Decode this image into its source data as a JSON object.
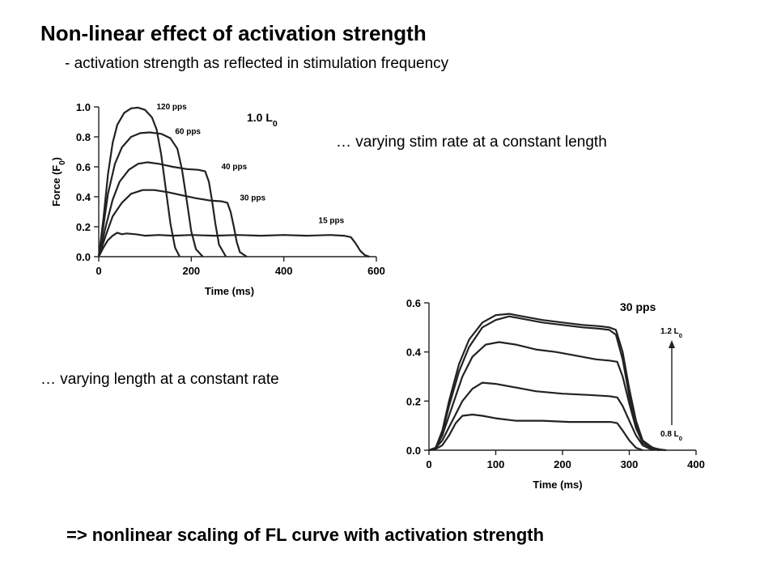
{
  "header": {
    "title": "Non-linear effect of activation strength",
    "subtitle": "- activation strength as reflected in stimulation frequency"
  },
  "notes": {
    "rate_note": "… varying stim rate at a constant length",
    "length_note": "… varying length at a constant rate"
  },
  "conclusion": "=> nonlinear scaling of FL curve with activation strength",
  "chart_data": [
    {
      "type": "line",
      "corner_label": "1.0 L",
      "corner_label_subscript": "0",
      "xlabel": "Time (ms)",
      "ylabel": "Force (F",
      "ylabel_subscript": "0",
      "ylabel_suffix": ")",
      "xlim": [
        0,
        600
      ],
      "ylim": [
        0,
        1.0
      ],
      "x_ticks": [
        0,
        200,
        400,
        600
      ],
      "x_tick_labels": [
        "0",
        "200",
        "400",
        "600"
      ],
      "y_ticks": [
        0,
        0.2,
        0.4,
        0.6,
        0.8,
        1.0
      ],
      "y_tick_labels": [
        "0.0",
        "0.2",
        "0.4",
        "0.6",
        "0.8",
        "1.0"
      ],
      "series": [
        {
          "name": "120 pps",
          "label_pos": [
            125,
            0.985
          ],
          "points": [
            [
              0,
              0
            ],
            [
              10,
              0.25
            ],
            [
              20,
              0.55
            ],
            [
              30,
              0.76
            ],
            [
              40,
              0.88
            ],
            [
              55,
              0.96
            ],
            [
              70,
              0.99
            ],
            [
              85,
              0.995
            ],
            [
              100,
              0.98
            ],
            [
              115,
              0.93
            ],
            [
              125,
              0.85
            ],
            [
              135,
              0.68
            ],
            [
              145,
              0.45
            ],
            [
              155,
              0.22
            ],
            [
              165,
              0.06
            ],
            [
              175,
              0
            ]
          ]
        },
        {
          "name": "60 pps",
          "label_pos": [
            165,
            0.82
          ],
          "points": [
            [
              0,
              0
            ],
            [
              10,
              0.2
            ],
            [
              20,
              0.42
            ],
            [
              35,
              0.62
            ],
            [
              50,
              0.73
            ],
            [
              70,
              0.8
            ],
            [
              90,
              0.825
            ],
            [
              110,
              0.83
            ],
            [
              135,
              0.82
            ],
            [
              155,
              0.79
            ],
            [
              170,
              0.72
            ],
            [
              180,
              0.58
            ],
            [
              190,
              0.38
            ],
            [
              200,
              0.17
            ],
            [
              210,
              0.05
            ],
            [
              225,
              0
            ]
          ]
        },
        {
          "name": "40 pps",
          "label_pos": [
            265,
            0.585
          ],
          "points": [
            [
              0,
              0
            ],
            [
              15,
              0.2
            ],
            [
              30,
              0.38
            ],
            [
              45,
              0.5
            ],
            [
              65,
              0.58
            ],
            [
              85,
              0.62
            ],
            [
              105,
              0.63
            ],
            [
              130,
              0.62
            ],
            [
              160,
              0.6
            ],
            [
              190,
              0.585
            ],
            [
              215,
              0.58
            ],
            [
              230,
              0.57
            ],
            [
              238,
              0.5
            ],
            [
              245,
              0.37
            ],
            [
              252,
              0.22
            ],
            [
              260,
              0.08
            ],
            [
              275,
              0
            ]
          ]
        },
        {
          "name": "30 pps",
          "label_pos": [
            305,
            0.375
          ],
          "points": [
            [
              0,
              0
            ],
            [
              15,
              0.14
            ],
            [
              30,
              0.27
            ],
            [
              50,
              0.36
            ],
            [
              70,
              0.42
            ],
            [
              95,
              0.445
            ],
            [
              120,
              0.445
            ],
            [
              150,
              0.43
            ],
            [
              180,
              0.41
            ],
            [
              210,
              0.39
            ],
            [
              240,
              0.375
            ],
            [
              265,
              0.37
            ],
            [
              278,
              0.36
            ],
            [
              285,
              0.3
            ],
            [
              292,
              0.2
            ],
            [
              298,
              0.1
            ],
            [
              305,
              0.03
            ],
            [
              320,
              0
            ]
          ]
        },
        {
          "name": "15 pps",
          "label_pos": [
            475,
            0.225
          ],
          "points": [
            [
              0,
              0
            ],
            [
              10,
              0.06
            ],
            [
              20,
              0.11
            ],
            [
              30,
              0.14
            ],
            [
              40,
              0.16
            ],
            [
              50,
              0.15
            ],
            [
              60,
              0.155
            ],
            [
              80,
              0.15
            ],
            [
              100,
              0.14
            ],
            [
              130,
              0.145
            ],
            [
              160,
              0.14
            ],
            [
              200,
              0.145
            ],
            [
              250,
              0.14
            ],
            [
              300,
              0.145
            ],
            [
              350,
              0.14
            ],
            [
              400,
              0.145
            ],
            [
              450,
              0.14
            ],
            [
              500,
              0.145
            ],
            [
              530,
              0.14
            ],
            [
              545,
              0.13
            ],
            [
              555,
              0.09
            ],
            [
              565,
              0.04
            ],
            [
              575,
              0.01
            ],
            [
              585,
              0
            ]
          ]
        }
      ]
    },
    {
      "type": "line",
      "corner_label": "30 pps",
      "xlabel": "Time (ms)",
      "xlim": [
        0,
        400
      ],
      "ylim": [
        0,
        0.6
      ],
      "x_ticks": [
        0,
        100,
        200,
        300,
        400
      ],
      "x_tick_labels": [
        "0",
        "100",
        "200",
        "300",
        "400"
      ],
      "y_ticks": [
        0,
        0.2,
        0.4,
        0.6
      ],
      "y_tick_labels": [
        "0.0",
        "0.2",
        "0.4",
        "0.6"
      ],
      "arrow_top_label": "1.2 L",
      "arrow_top_label_subscript": "0",
      "arrow_bottom_label": "0.8 L",
      "arrow_bottom_label_subscript": "0",
      "series": [
        {
          "name": "",
          "points": [
            [
              0,
              0
            ],
            [
              10,
              0.01
            ],
            [
              20,
              0.08
            ],
            [
              30,
              0.2
            ],
            [
              45,
              0.35
            ],
            [
              60,
              0.45
            ],
            [
              80,
              0.52
            ],
            [
              100,
              0.55
            ],
            [
              120,
              0.555
            ],
            [
              140,
              0.545
            ],
            [
              170,
              0.53
            ],
            [
              200,
              0.52
            ],
            [
              230,
              0.51
            ],
            [
              255,
              0.505
            ],
            [
              270,
              0.5
            ],
            [
              280,
              0.49
            ],
            [
              290,
              0.4
            ],
            [
              300,
              0.25
            ],
            [
              310,
              0.12
            ],
            [
              320,
              0.04
            ],
            [
              335,
              0.01
            ],
            [
              350,
              0
            ]
          ]
        },
        {
          "name": "",
          "points": [
            [
              0,
              0
            ],
            [
              10,
              0.01
            ],
            [
              20,
              0.07
            ],
            [
              30,
              0.18
            ],
            [
              45,
              0.32
            ],
            [
              60,
              0.42
            ],
            [
              80,
              0.5
            ],
            [
              100,
              0.53
            ],
            [
              120,
              0.545
            ],
            [
              140,
              0.535
            ],
            [
              170,
              0.52
            ],
            [
              200,
              0.51
            ],
            [
              230,
              0.5
            ],
            [
              255,
              0.495
            ],
            [
              270,
              0.49
            ],
            [
              280,
              0.47
            ],
            [
              290,
              0.37
            ],
            [
              300,
              0.22
            ],
            [
              310,
              0.1
            ],
            [
              320,
              0.03
            ],
            [
              340,
              0.005
            ],
            [
              355,
              0
            ]
          ]
        },
        {
          "name": "",
          "points": [
            [
              0,
              0
            ],
            [
              10,
              0.01
            ],
            [
              20,
              0.06
            ],
            [
              35,
              0.18
            ],
            [
              50,
              0.3
            ],
            [
              65,
              0.38
            ],
            [
              85,
              0.43
            ],
            [
              105,
              0.44
            ],
            [
              130,
              0.43
            ],
            [
              160,
              0.41
            ],
            [
              190,
              0.4
            ],
            [
              220,
              0.385
            ],
            [
              250,
              0.37
            ],
            [
              270,
              0.365
            ],
            [
              282,
              0.36
            ],
            [
              290,
              0.3
            ],
            [
              300,
              0.19
            ],
            [
              310,
              0.09
            ],
            [
              320,
              0.03
            ],
            [
              335,
              0.005
            ],
            [
              345,
              0
            ]
          ]
        },
        {
          "name": "",
          "points": [
            [
              0,
              0
            ],
            [
              10,
              0.01
            ],
            [
              20,
              0.04
            ],
            [
              35,
              0.12
            ],
            [
              50,
              0.2
            ],
            [
              65,
              0.25
            ],
            [
              80,
              0.275
            ],
            [
              100,
              0.27
            ],
            [
              130,
              0.255
            ],
            [
              160,
              0.24
            ],
            [
              200,
              0.23
            ],
            [
              240,
              0.225
            ],
            [
              270,
              0.22
            ],
            [
              282,
              0.215
            ],
            [
              290,
              0.18
            ],
            [
              300,
              0.12
            ],
            [
              310,
              0.06
            ],
            [
              320,
              0.02
            ],
            [
              335,
              0
            ]
          ]
        },
        {
          "name": "",
          "points": [
            [
              0,
              0
            ],
            [
              10,
              0.005
            ],
            [
              20,
              0.02
            ],
            [
              30,
              0.06
            ],
            [
              40,
              0.11
            ],
            [
              50,
              0.14
            ],
            [
              65,
              0.145
            ],
            [
              80,
              0.14
            ],
            [
              100,
              0.13
            ],
            [
              130,
              0.12
            ],
            [
              170,
              0.12
            ],
            [
              210,
              0.115
            ],
            [
              250,
              0.115
            ],
            [
              272,
              0.115
            ],
            [
              282,
              0.11
            ],
            [
              290,
              0.08
            ],
            [
              300,
              0.04
            ],
            [
              310,
              0.01
            ],
            [
              320,
              0
            ]
          ]
        }
      ]
    }
  ]
}
